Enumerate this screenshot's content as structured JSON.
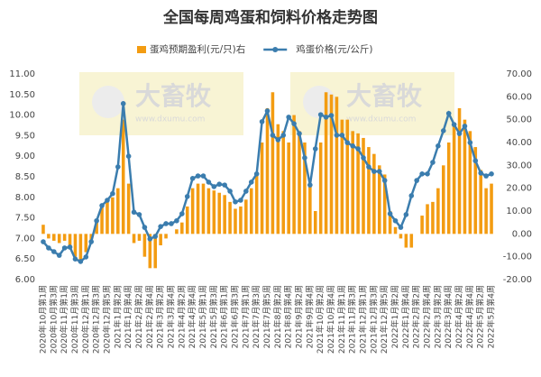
{
  "chart_data": {
    "type": "bar-line",
    "title": "全国每周鸡蛋和饲料价格走势图",
    "watermark": {
      "brand": "大畜牧",
      "url": "www.dxumu.com"
    },
    "categories": [
      "2020年10月第1周",
      null,
      "2020年10月第3周",
      null,
      "2020年11月第1周",
      null,
      "2020年11月第3周",
      null,
      "2020年12月第1周",
      null,
      "2020年12月第3周",
      null,
      "2020年12月第5周",
      null,
      "2021年1月第2周",
      null,
      "2021年1月第4周",
      null,
      "2021年2月第2周",
      null,
      "2021年2月第4周",
      null,
      "2021年3月第2周",
      null,
      "2021年3月第4周",
      null,
      "2021年4月第2周",
      null,
      "2021年4月第4周",
      null,
      "2021年5月第1周",
      null,
      "2021年5月第3周",
      null,
      "2021年6月第1周",
      null,
      "2021年6月第3周",
      null,
      "2021年7月第1周",
      null,
      "2021年7月第3周",
      null,
      "2021年7月第5周",
      null,
      "2021年8月第2周",
      null,
      "2021年8月第4周",
      null,
      "2021年9月第2周",
      null,
      "2021年9月第4周",
      null,
      "2021年10月第2周",
      null,
      "2021年10月第4周",
      null,
      "2021年11月第1周",
      null,
      "2021年11月第3周",
      null,
      "2021年12月第1周",
      null,
      "2021年12月第3周",
      null,
      "2021年12月第5周",
      null,
      "2022年1月第2周",
      null,
      "2022年1月第4周",
      null,
      "2022年2月第2周",
      null,
      "2022年2月第4周",
      null,
      "2022年3月第2周",
      null,
      "2022年3月第4周",
      null,
      "2022年4月第2周",
      null,
      "2022年4月第4周",
      null,
      "2022年5月第2周",
      null,
      "2022年5月第4周"
    ],
    "series": [
      {
        "name": "蛋鸡预期盈利(元/只)右",
        "type": "bar",
        "axis": "y2",
        "color": "#f39c12",
        "values": [
          4,
          -2,
          -3,
          -4,
          -3,
          -5,
          -10,
          -12,
          -8,
          -3,
          5,
          12,
          14,
          16,
          20,
          50,
          22,
          -4,
          -3,
          -10,
          -15,
          -15,
          -5,
          -2,
          0,
          2,
          5,
          12,
          20,
          22,
          22,
          20,
          19,
          18,
          17,
          14,
          11,
          12,
          15,
          20,
          26,
          40,
          55,
          62,
          48,
          45,
          40,
          52,
          45,
          40,
          22,
          10,
          40,
          62,
          61,
          60,
          50,
          50,
          45,
          44,
          42,
          38,
          35,
          30,
          26,
          10,
          3,
          -2,
          -6,
          -6,
          0,
          8,
          13,
          14,
          20,
          30,
          40,
          48,
          55,
          50,
          45,
          38,
          28,
          20,
          22
        ]
      },
      {
        "name": "鸡蛋价格(元/公斤)",
        "type": "line",
        "axis": "y",
        "color": "#3b7dae",
        "values": [
          6.92,
          6.77,
          6.68,
          6.59,
          6.77,
          6.79,
          6.5,
          6.44,
          6.55,
          6.92,
          7.43,
          7.8,
          7.93,
          8.09,
          8.74,
          10.28,
          9.0,
          7.64,
          7.58,
          7.27,
          6.99,
          7.05,
          7.29,
          7.36,
          7.36,
          7.43,
          7.6,
          8.02,
          8.46,
          8.52,
          8.52,
          8.37,
          8.26,
          8.32,
          8.3,
          8.15,
          7.89,
          7.93,
          8.15,
          8.37,
          8.57,
          9.84,
          10.1,
          9.51,
          9.4,
          9.51,
          9.95,
          9.79,
          9.55,
          8.96,
          8.3,
          9.18,
          10.01,
          9.95,
          9.99,
          9.51,
          9.51,
          9.33,
          9.25,
          9.18,
          8.96,
          8.74,
          8.63,
          8.63,
          8.41,
          7.6,
          7.43,
          7.27,
          7.58,
          8.04,
          8.41,
          8.57,
          8.57,
          8.85,
          9.25,
          9.62,
          10.04,
          9.77,
          9.55,
          9.73,
          9.33,
          8.89,
          8.59,
          8.52,
          8.57
        ]
      }
    ],
    "ylim": [
      6,
      11
    ],
    "yticks": [
      {
        "value": 6,
        "label": "6.00"
      },
      {
        "value": 6.5,
        "label": "6.50"
      },
      {
        "value": 7,
        "label": "7.00"
      },
      {
        "value": 7.5,
        "label": "7.50"
      },
      {
        "value": 8,
        "label": "8.00"
      },
      {
        "value": 8.5,
        "label": "8.50"
      },
      {
        "value": 9,
        "label": "9.00"
      },
      {
        "value": 9.5,
        "label": "9.50"
      },
      {
        "value": 10,
        "label": "10.00"
      },
      {
        "value": 10.5,
        "label": "10.50"
      },
      {
        "value": 11,
        "label": "11.00"
      }
    ],
    "y2lim": [
      -20,
      70
    ],
    "y2ticks": [
      {
        "value": -20,
        "label": "-20.00"
      },
      {
        "value": -10,
        "label": "-10.00"
      },
      {
        "value": 0,
        "label": "0.00"
      },
      {
        "value": 10,
        "label": "10.00"
      },
      {
        "value": 20,
        "label": "20.00"
      },
      {
        "value": 30,
        "label": "30.00"
      },
      {
        "value": 40,
        "label": "40.00"
      },
      {
        "value": 50,
        "label": "50.00"
      },
      {
        "value": 60,
        "label": "60.00"
      },
      {
        "value": 70,
        "label": "70.00"
      }
    ],
    "grid": false,
    "legend": "top"
  }
}
